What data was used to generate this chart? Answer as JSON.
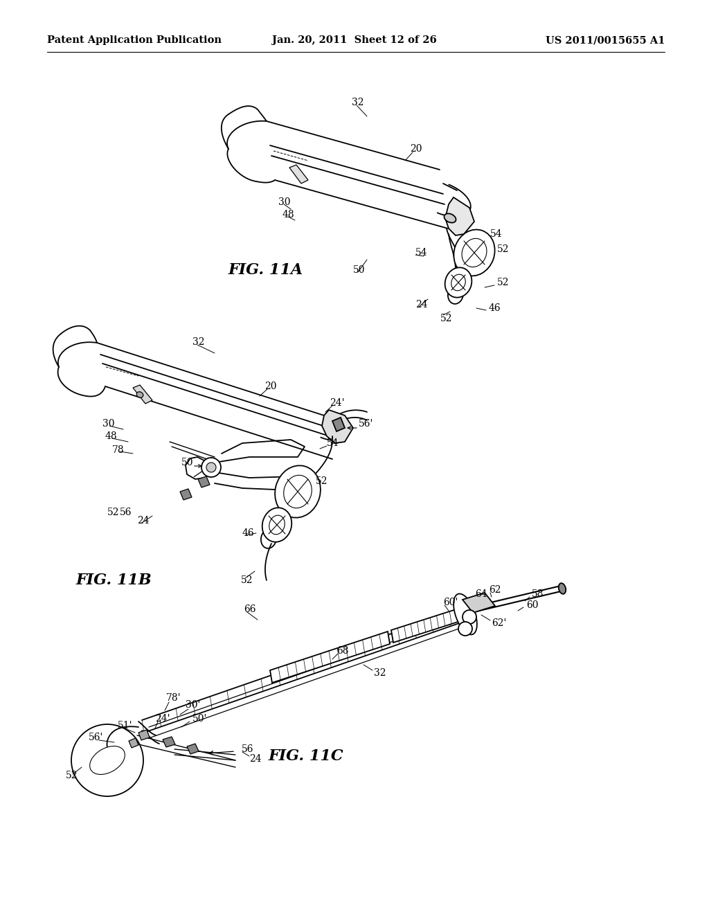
{
  "background_color": "#ffffff",
  "header_left": "Patent Application Publication",
  "header_center": "Jan. 20, 2011  Sheet 12 of 26",
  "header_right": "US 2011/0015655 A1",
  "header_fontsize": 10.5,
  "annotation_fontsize": 10,
  "fig_label_fontsize": 16,
  "line_color": "#000000",
  "line_width": 1.3
}
